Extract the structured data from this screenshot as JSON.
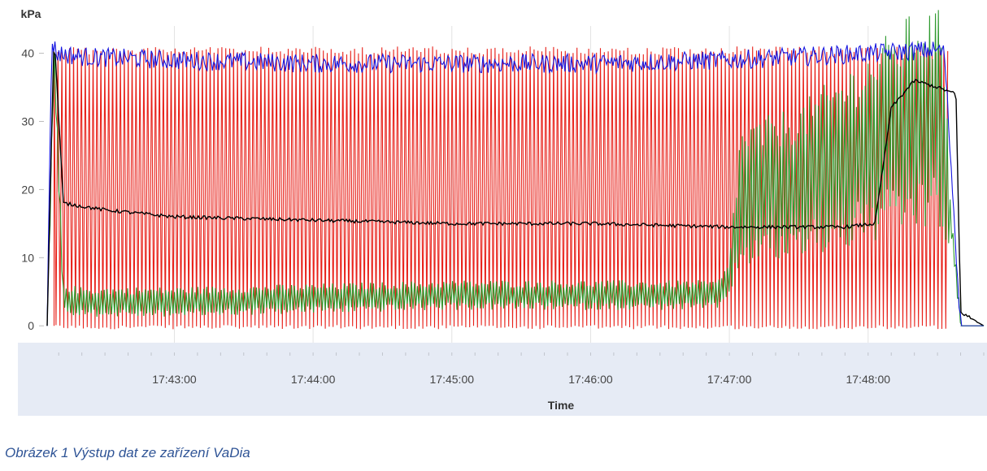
{
  "caption": "Obrázek 1 Výstup dat ze zařízení VaDia",
  "chart_data": {
    "type": "line",
    "title": "",
    "ylabel": "kPa",
    "xlabel": "Time",
    "ylim": [
      -2,
      44
    ],
    "xlim": [
      "17:42:05",
      "17:48:50"
    ],
    "y_ticks": [
      0,
      10,
      20,
      30,
      40
    ],
    "x_ticks": [
      "17:43:00",
      "17:44:00",
      "17:45:00",
      "17:46:00",
      "17:47:00",
      "17:48:00"
    ],
    "grid": true,
    "legend": "none",
    "colors": {
      "red": "#e8221b",
      "blue": "#1515e0",
      "green": "#2e9a2e",
      "black": "#000000",
      "plot_bg": "#ffffff",
      "axis_band": "#e6ebf5",
      "grid": "#e2e2e2"
    },
    "series": [
      {
        "name": "Red oscillating pressure",
        "color": "#e8221b",
        "style": "oscillation",
        "x": [
          "17:42:05",
          "17:42:08",
          "17:48:35",
          "17:48:38"
        ],
        "high": [
          0,
          41,
          41,
          0
        ],
        "low": [
          0,
          -0.5,
          -0.5,
          0
        ]
      },
      {
        "name": "Blue upper envelope",
        "color": "#1515e0",
        "x": [
          "17:42:05",
          "17:42:07",
          "17:42:09",
          "17:42:20",
          "17:43:00",
          "17:44:00",
          "17:45:00",
          "17:46:00",
          "17:47:00",
          "17:47:30",
          "17:48:00",
          "17:48:30",
          "17:48:33",
          "17:48:40",
          "17:48:50"
        ],
        "y": [
          0,
          42,
          40,
          39.5,
          39,
          38.5,
          38.5,
          38.5,
          39,
          39.5,
          40,
          40.5,
          40,
          0,
          0
        ]
      },
      {
        "name": "Green pressure",
        "color": "#2e9a2e",
        "x": [
          "17:42:05",
          "17:42:08",
          "17:42:12",
          "17:42:20",
          "17:43:00",
          "17:44:00",
          "17:45:00",
          "17:46:00",
          "17:46:55",
          "17:47:00",
          "17:47:05",
          "17:47:30",
          "17:48:00",
          "17:48:20",
          "17:48:32",
          "17:48:40",
          "17:48:50"
        ],
        "y": [
          0,
          40,
          4,
          3.5,
          3.5,
          4,
          4.5,
          4.5,
          4.5,
          7,
          19,
          21,
          26,
          30,
          30,
          0,
          0
        ]
      },
      {
        "name": "Black mean pressure",
        "color": "#000000",
        "x": [
          "17:42:05",
          "17:42:08",
          "17:42:12",
          "17:42:30",
          "17:43:00",
          "17:44:00",
          "17:45:00",
          "17:46:00",
          "17:47:00",
          "17:47:50",
          "17:48:03",
          "17:48:10",
          "17:48:20",
          "17:48:30",
          "17:48:38",
          "17:48:40",
          "17:48:50"
        ],
        "y": [
          0,
          43,
          18,
          17,
          16,
          15.5,
          15,
          15,
          14.5,
          14.5,
          15,
          32,
          36,
          35,
          34,
          2,
          0
        ]
      }
    ]
  }
}
